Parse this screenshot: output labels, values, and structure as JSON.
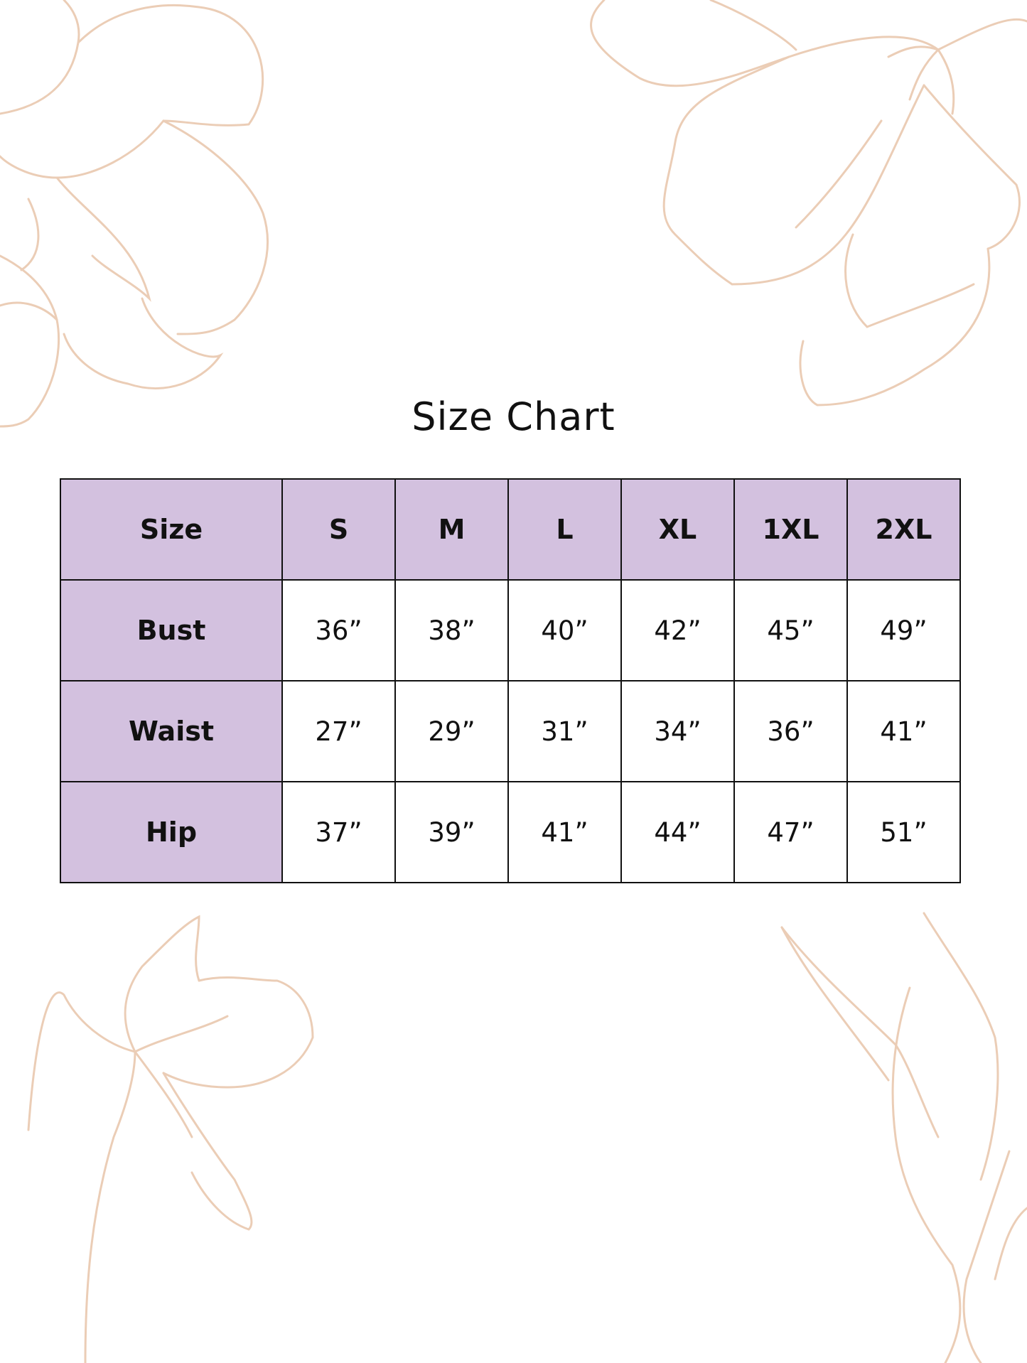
{
  "title": "Size Chart",
  "colors": {
    "header_bg": "#d3c1df",
    "decoration": "#ebcdb6",
    "border": "#111111"
  },
  "table": {
    "headers": [
      "Size",
      "S",
      "M",
      "L",
      "XL",
      "1XL",
      "2XL"
    ],
    "rows": [
      {
        "label": "Bust",
        "values": [
          "36”",
          "38”",
          "40”",
          "42”",
          "45”",
          "49”"
        ]
      },
      {
        "label": "Waist",
        "values": [
          "27”",
          "29”",
          "31”",
          "34”",
          "36”",
          "41”"
        ]
      },
      {
        "label": "Hip",
        "values": [
          "37”",
          "39”",
          "41”",
          "44”",
          "47”",
          "51”"
        ]
      }
    ]
  }
}
